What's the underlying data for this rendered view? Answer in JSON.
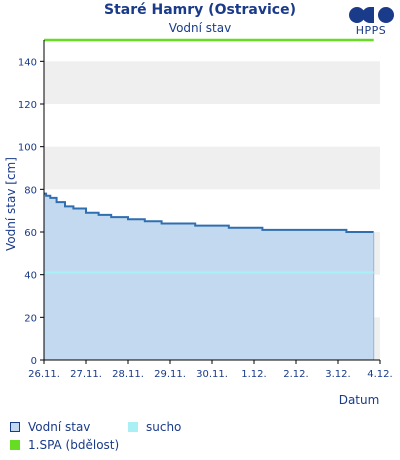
{
  "chart_data": {
    "type": "area",
    "title": "Staré Hamry (Ostravice)",
    "subtitle": "Vodní stav",
    "ylabel": "Vodní stav [cm]",
    "xlabel": "Datum",
    "ylim": [
      0,
      150
    ],
    "yticks": [
      0,
      20,
      40,
      60,
      80,
      100,
      120,
      140
    ],
    "xlim": [
      0,
      8
    ],
    "xticks": [
      "26.11.",
      "27.11.",
      "28.11.",
      "29.11.",
      "30.11.",
      "1.12.",
      "2.12.",
      "3.12.",
      "4.12."
    ],
    "grid": "horizontal bands",
    "legend_position": "bottom",
    "series": [
      {
        "name": "Vodní stav",
        "type": "area",
        "color": "#2f6fb0",
        "fill": "#c3d9ef",
        "x": [
          0,
          0.05,
          0.15,
          0.3,
          0.5,
          0.7,
          1.0,
          1.3,
          1.6,
          2.0,
          2.4,
          2.8,
          3.2,
          3.6,
          4.0,
          4.4,
          4.8,
          5.2,
          5.6,
          6.0,
          6.4,
          6.8,
          7.2,
          7.6,
          7.85
        ],
        "values": [
          78,
          77,
          76,
          74,
          72,
          71,
          69,
          68,
          67,
          66,
          65,
          64,
          64,
          63,
          63,
          62,
          62,
          61,
          61,
          61,
          61,
          61,
          60,
          60,
          60
        ]
      },
      {
        "name": "sucho",
        "type": "line",
        "color": "#a8f0f4",
        "x": [
          0,
          7.85
        ],
        "values": [
          41,
          41
        ]
      },
      {
        "name": "1.SPA (bdělost)",
        "type": "line",
        "color": "#66dd22",
        "x": [
          0,
          7.85
        ],
        "values": [
          150,
          150
        ]
      }
    ]
  },
  "logo": {
    "text": "HPPS",
    "color": "#1a3a8a"
  },
  "legend": {
    "items": [
      {
        "label": "Vodní stav",
        "swatch_fill": "#c3d9ef",
        "swatch_border": "#1a3a8a"
      },
      {
        "label": "sucho",
        "swatch_fill": "#a8f0f4",
        "swatch_border": "#a8f0f4"
      },
      {
        "label": "1.SPA (bdělost)",
        "swatch_fill": "#66dd22",
        "swatch_border": "#66dd22"
      }
    ]
  }
}
